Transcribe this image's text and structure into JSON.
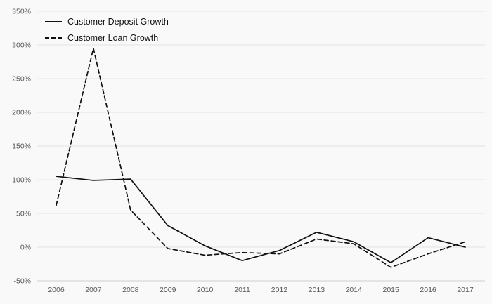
{
  "chart_data": {
    "type": "line",
    "x": [
      "2006",
      "2007",
      "2008",
      "2009",
      "2010",
      "2011",
      "2012",
      "2013",
      "2014",
      "2015",
      "2016",
      "2017"
    ],
    "series": [
      {
        "name": "Customer Deposit Growth",
        "style": "solid",
        "values": [
          105,
          99,
          101,
          32,
          2,
          -20,
          -5,
          22,
          8,
          -23,
          14,
          0
        ]
      },
      {
        "name": "Customer Loan Growth",
        "style": "dashed",
        "values": [
          62,
          295,
          55,
          -2,
          -12,
          -8,
          -10,
          12,
          5,
          -30,
          -10,
          8
        ]
      }
    ],
    "ylim": [
      -50,
      350
    ],
    "yticks": [
      -50,
      0,
      50,
      100,
      150,
      200,
      250,
      300,
      350
    ],
    "ytick_suffix": "%",
    "grid": true,
    "legend_position": "top-left",
    "colors": {
      "line": "#111111",
      "grid": "#e4e4e4",
      "axis": "#cfcfcf",
      "tick_text": "#555555",
      "background": "#f9f9f9"
    }
  }
}
